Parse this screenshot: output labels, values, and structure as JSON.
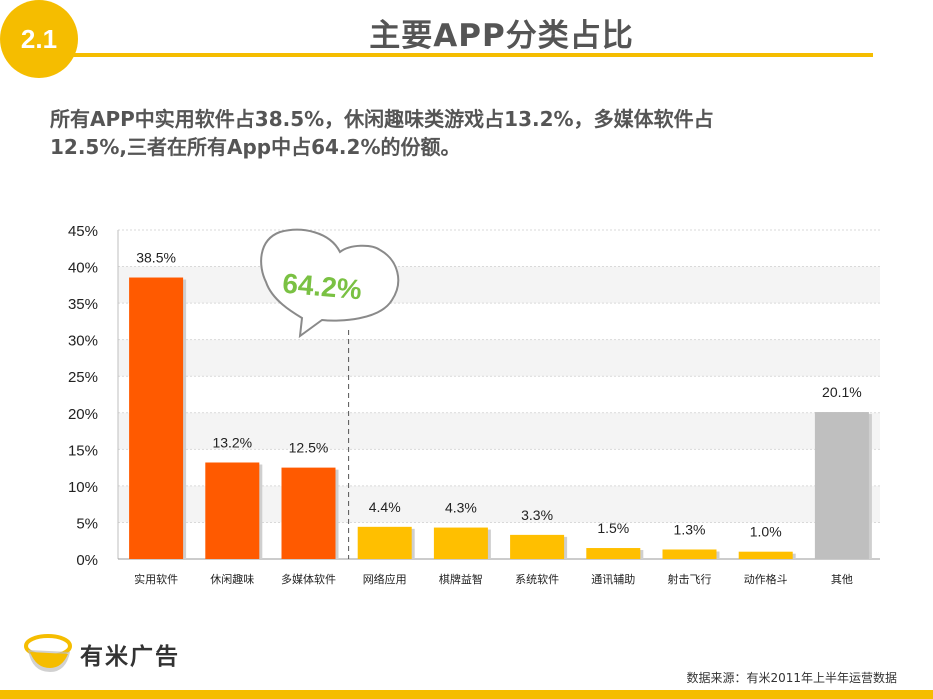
{
  "header": {
    "badge": "2.1",
    "title": "主要APP分类占比"
  },
  "subtitle": {
    "line1": "所有APP中实用软件占38.5%，休闲趣味类游戏占13.2%，多媒体软件占",
    "line2": "12.5%,三者在所有App中占64.2%的份额。"
  },
  "chart_data": {
    "type": "bar",
    "categories": [
      "实用软件",
      "休闲趣味",
      "多媒体软件",
      "网络应用",
      "棋牌益智",
      "系统软件",
      "通讯辅助",
      "射击飞行",
      "动作格斗",
      "其他"
    ],
    "values": [
      38.5,
      13.2,
      12.5,
      4.4,
      4.3,
      3.3,
      1.5,
      1.3,
      1.0,
      20.1
    ],
    "data_labels": [
      "38.5%",
      "13.2%",
      "12.5%",
      "4.4%",
      "4.3%",
      "3.3%",
      "1.5%",
      "1.3%",
      "1.0%",
      "20.1%"
    ],
    "bar_colors": [
      "#ff5a00",
      "#ff5a00",
      "#ff5a00",
      "#ffbf00",
      "#ffbf00",
      "#ffbf00",
      "#ffbf00",
      "#ffbf00",
      "#ffbf00",
      "#bfbfbf"
    ],
    "ylim": [
      0,
      45
    ],
    "yticks": [
      "0%",
      "5%",
      "10%",
      "15%",
      "20%",
      "25%",
      "30%",
      "35%",
      "40%",
      "45%"
    ],
    "grid": true,
    "callout": "64.2%",
    "callout_color": "#7ac143",
    "title": "",
    "xlabel": "",
    "ylabel": ""
  },
  "footer": {
    "logo_text": "有米广告",
    "source": "数据来源：有米2011年上半年运营数据"
  }
}
